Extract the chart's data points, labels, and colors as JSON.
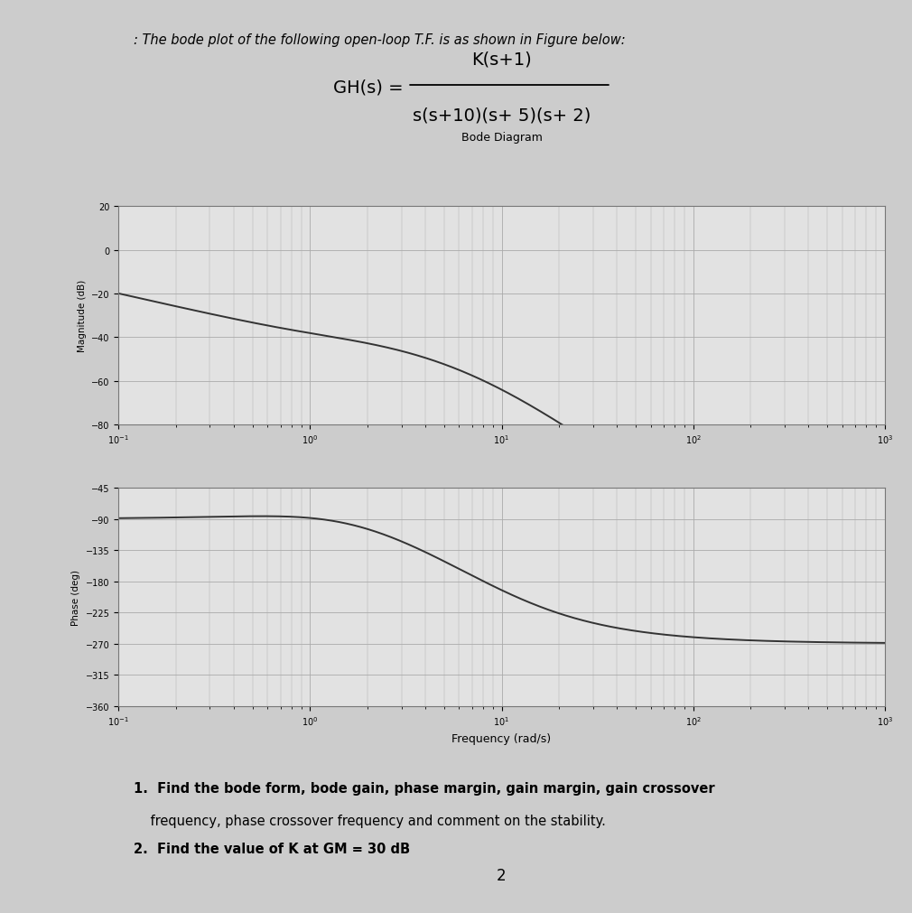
{
  "title_text": ": The bode plot of the following open-loop T.F. is as shown in Figure below:",
  "tf_numerator": "K(s+1)",
  "tf_denominator": "s(s+10)(s+ 5)(s+ 2)",
  "gh_label": "GH(s) =",
  "bode_title": "Bode Diagram",
  "freq_label": "Frequency (rad/s)",
  "mag_ylabel": "Magnitude (dB)",
  "phase_ylabel": "Phase (deg)",
  "K": 1.0,
  "freq_range_log": [
    -1,
    3
  ],
  "mag_ylim": [
    -80,
    20
  ],
  "phase_ylim": [
    -360,
    -45
  ],
  "mag_yticks": [
    20,
    0,
    -20,
    -40,
    -60,
    -80
  ],
  "phase_yticks": [
    -45,
    -90,
    -135,
    -180,
    -225,
    -270,
    -315,
    -360
  ],
  "background_color": "#cccccc",
  "plot_bg_color": "#e2e2e2",
  "line_color": "#333333",
  "grid_color": "#aaaaaa",
  "questions_line1": "1.  Find the bode form, bode gain, phase margin, gain margin, gain crossover",
  "questions_line2": "    frequency, phase crossover frequency and comment on the stability.",
  "questions_line3": "2.  Find the value of K at GM = 30 dB",
  "page_number": "2",
  "fig_width": 10.1,
  "fig_height": 10.12
}
